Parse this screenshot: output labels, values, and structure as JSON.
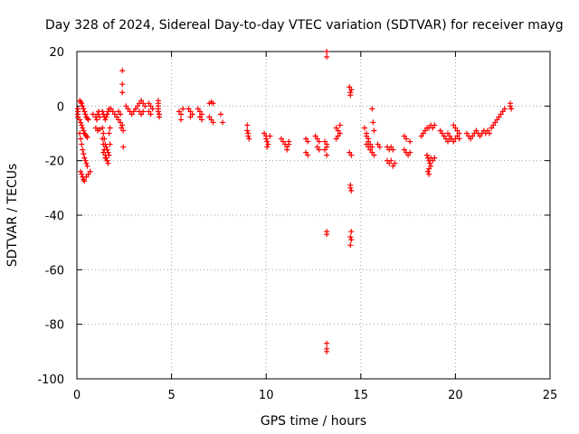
{
  "chart_data": {
    "type": "scatter",
    "title": "Day 328 of 2024, Sidereal Day-to-day VTEC variation (SDTVAR) for receiver mayg",
    "xlabel": "GPS time / hours",
    "ylabel": "SDTVAR / TECUs",
    "xlim": [
      0,
      25
    ],
    "ylim": [
      -100,
      20
    ],
    "xticks": [
      0,
      5,
      10,
      15,
      20,
      25
    ],
    "yticks": [
      -100,
      -80,
      -60,
      -40,
      -20,
      0,
      20
    ],
    "grid": true,
    "marker": "+",
    "colors": {
      "points": "#ff0000",
      "grid": "#a0a0a0",
      "axes": "#000000"
    },
    "series": [
      {
        "name": "SDTVAR",
        "points": [
          [
            0.05,
            -1
          ],
          [
            0.05,
            -2
          ],
          [
            0.05,
            -3
          ],
          [
            0.05,
            -4
          ],
          [
            0.15,
            2
          ],
          [
            0.2,
            1.5
          ],
          [
            0.25,
            1
          ],
          [
            0.3,
            0
          ],
          [
            0.35,
            -1
          ],
          [
            0.4,
            -2
          ],
          [
            0.45,
            -3
          ],
          [
            0.5,
            -4
          ],
          [
            0.55,
            -4.5
          ],
          [
            0.6,
            -5
          ],
          [
            0.15,
            -5
          ],
          [
            0.2,
            -6
          ],
          [
            0.25,
            -7
          ],
          [
            0.3,
            -8
          ],
          [
            0.35,
            -9
          ],
          [
            0.4,
            -10
          ],
          [
            0.45,
            -10.5
          ],
          [
            0.5,
            -11
          ],
          [
            0.55,
            -11.5
          ],
          [
            0.15,
            -10
          ],
          [
            0.2,
            -12
          ],
          [
            0.25,
            -14
          ],
          [
            0.3,
            -16
          ],
          [
            0.35,
            -17.5
          ],
          [
            0.4,
            -19
          ],
          [
            0.45,
            -20
          ],
          [
            0.5,
            -21
          ],
          [
            0.55,
            -22
          ],
          [
            0.2,
            -24
          ],
          [
            0.25,
            -25
          ],
          [
            0.3,
            -26
          ],
          [
            0.35,
            -27
          ],
          [
            0.4,
            -27.5
          ],
          [
            0.5,
            -26
          ],
          [
            0.6,
            -25
          ],
          [
            0.7,
            -24
          ],
          [
            0.85,
            -3
          ],
          [
            1.0,
            -4
          ],
          [
            1.05,
            -5
          ],
          [
            1.1,
            -3
          ],
          [
            1.15,
            -2
          ],
          [
            1.2,
            -4
          ],
          [
            1.0,
            -8
          ],
          [
            1.1,
            -9
          ],
          [
            1.2,
            -8.5
          ],
          [
            1.35,
            -2
          ],
          [
            1.4,
            -3
          ],
          [
            1.45,
            -4
          ],
          [
            1.5,
            -5
          ],
          [
            1.55,
            -4
          ],
          [
            1.6,
            -3
          ],
          [
            1.65,
            -2
          ],
          [
            1.7,
            -1
          ],
          [
            1.35,
            -8
          ],
          [
            1.4,
            -10
          ],
          [
            1.45,
            -12
          ],
          [
            1.5,
            -14
          ],
          [
            1.55,
            -15
          ],
          [
            1.6,
            -16
          ],
          [
            1.65,
            -17
          ],
          [
            1.35,
            -12
          ],
          [
            1.4,
            -14
          ],
          [
            1.45,
            -16
          ],
          [
            1.5,
            -18
          ],
          [
            1.55,
            -19
          ],
          [
            1.6,
            -20
          ],
          [
            1.65,
            -21
          ],
          [
            1.4,
            -17
          ],
          [
            1.5,
            -19
          ],
          [
            1.6,
            -20
          ],
          [
            1.7,
            -18
          ],
          [
            1.75,
            -14
          ],
          [
            1.7,
            -10
          ],
          [
            1.75,
            -8
          ],
          [
            1.8,
            -1
          ],
          [
            1.9,
            -2
          ],
          [
            2.0,
            -3
          ],
          [
            2.1,
            -4
          ],
          [
            2.2,
            -2
          ],
          [
            2.3,
            -3
          ],
          [
            2.2,
            -5
          ],
          [
            2.3,
            -6
          ],
          [
            2.4,
            -7
          ],
          [
            2.35,
            -8
          ],
          [
            2.4,
            13
          ],
          [
            2.4,
            8
          ],
          [
            2.4,
            5
          ],
          [
            2.45,
            -9
          ],
          [
            2.45,
            -15
          ],
          [
            2.6,
            0
          ],
          [
            2.7,
            -1
          ],
          [
            2.8,
            -2
          ],
          [
            2.9,
            -3
          ],
          [
            3.0,
            -2
          ],
          [
            3.1,
            -1
          ],
          [
            3.2,
            0
          ],
          [
            3.3,
            1
          ],
          [
            3.4,
            2
          ],
          [
            3.5,
            1
          ],
          [
            3.6,
            0
          ],
          [
            3.3,
            -2
          ],
          [
            3.4,
            -3
          ],
          [
            3.5,
            -2
          ],
          [
            3.8,
            1
          ],
          [
            3.9,
            0
          ],
          [
            4.0,
            -1
          ],
          [
            3.8,
            -2
          ],
          [
            3.9,
            -3
          ],
          [
            4.3,
            2
          ],
          [
            4.3,
            1
          ],
          [
            4.3,
            0
          ],
          [
            4.3,
            -1
          ],
          [
            4.3,
            -2
          ],
          [
            4.35,
            -3
          ],
          [
            4.35,
            -4
          ],
          [
            5.4,
            -2
          ],
          [
            5.5,
            -3
          ],
          [
            5.6,
            -1
          ],
          [
            5.5,
            -5
          ],
          [
            5.9,
            -1
          ],
          [
            6.0,
            -2
          ],
          [
            6.1,
            -3
          ],
          [
            6.0,
            -4
          ],
          [
            6.4,
            -1
          ],
          [
            6.5,
            -2
          ],
          [
            6.6,
            -3
          ],
          [
            6.5,
            -4
          ],
          [
            6.6,
            -5
          ],
          [
            7.0,
            1
          ],
          [
            7.1,
            1.5
          ],
          [
            7.2,
            1
          ],
          [
            7.0,
            -4
          ],
          [
            7.1,
            -5
          ],
          [
            7.2,
            -6
          ],
          [
            7.6,
            -3
          ],
          [
            7.7,
            -6
          ],
          [
            9.0,
            -7
          ],
          [
            9.0,
            -9
          ],
          [
            9.05,
            -10
          ],
          [
            9.05,
            -11
          ],
          [
            9.1,
            -12
          ],
          [
            9.9,
            -10
          ],
          [
            10.0,
            -11
          ],
          [
            10.0,
            -12
          ],
          [
            10.05,
            -13
          ],
          [
            10.1,
            -14
          ],
          [
            10.05,
            -15
          ],
          [
            10.2,
            -11
          ],
          [
            10.8,
            -12
          ],
          [
            10.9,
            -13
          ],
          [
            11.0,
            -14
          ],
          [
            11.1,
            -15
          ],
          [
            11.2,
            -14
          ],
          [
            11.1,
            -16
          ],
          [
            11.2,
            -13
          ],
          [
            12.1,
            -12
          ],
          [
            12.2,
            -13
          ],
          [
            12.1,
            -17
          ],
          [
            12.2,
            -18
          ],
          [
            12.6,
            -11
          ],
          [
            12.7,
            -12
          ],
          [
            12.8,
            -13
          ],
          [
            12.7,
            -15
          ],
          [
            12.8,
            -16
          ],
          [
            13.1,
            -13
          ],
          [
            13.2,
            -14
          ],
          [
            13.2,
            -15
          ],
          [
            13.1,
            -16
          ],
          [
            13.2,
            -18
          ],
          [
            13.2,
            20
          ],
          [
            13.2,
            18
          ],
          [
            13.2,
            -46
          ],
          [
            13.2,
            -47
          ],
          [
            13.2,
            -87
          ],
          [
            13.2,
            -89
          ],
          [
            13.2,
            -90
          ],
          [
            13.7,
            -8
          ],
          [
            13.8,
            -9
          ],
          [
            13.9,
            -10
          ],
          [
            13.8,
            -11
          ],
          [
            13.7,
            -12
          ],
          [
            13.9,
            -7
          ],
          [
            14.4,
            -17
          ],
          [
            14.5,
            -18
          ],
          [
            14.45,
            -30
          ],
          [
            14.5,
            -31
          ],
          [
            14.45,
            -29
          ],
          [
            14.4,
            7
          ],
          [
            14.45,
            5
          ],
          [
            14.5,
            6
          ],
          [
            14.45,
            4
          ],
          [
            14.5,
            -46
          ],
          [
            14.45,
            -48
          ],
          [
            14.5,
            -49
          ],
          [
            14.45,
            -51
          ],
          [
            15.2,
            -8
          ],
          [
            15.3,
            -10
          ],
          [
            15.4,
            -12
          ],
          [
            15.3,
            -14
          ],
          [
            15.4,
            -15
          ],
          [
            15.5,
            -16
          ],
          [
            15.6,
            -17
          ],
          [
            15.7,
            -18
          ],
          [
            15.3,
            -11
          ],
          [
            15.4,
            -13
          ],
          [
            15.5,
            -14
          ],
          [
            15.6,
            -15
          ],
          [
            15.6,
            -1
          ],
          [
            15.65,
            -6
          ],
          [
            15.7,
            -9
          ],
          [
            15.9,
            -14
          ],
          [
            16.0,
            -15
          ],
          [
            16.4,
            -15
          ],
          [
            16.5,
            -16
          ],
          [
            16.6,
            -15
          ],
          [
            16.7,
            -16
          ],
          [
            16.4,
            -20
          ],
          [
            16.5,
            -21
          ],
          [
            16.6,
            -20
          ],
          [
            16.7,
            -22
          ],
          [
            16.8,
            -21
          ],
          [
            17.3,
            -11
          ],
          [
            17.4,
            -12
          ],
          [
            17.3,
            -16
          ],
          [
            17.4,
            -17
          ],
          [
            17.5,
            -18
          ],
          [
            17.6,
            -17
          ],
          [
            17.6,
            -13
          ],
          [
            18.2,
            -11
          ],
          [
            18.3,
            -10
          ],
          [
            18.4,
            -9
          ],
          [
            18.5,
            -8
          ],
          [
            18.6,
            -8
          ],
          [
            18.7,
            -7
          ],
          [
            18.8,
            -8
          ],
          [
            18.9,
            -7
          ],
          [
            18.5,
            -18
          ],
          [
            18.55,
            -19
          ],
          [
            18.6,
            -20
          ],
          [
            18.65,
            -21
          ],
          [
            18.7,
            -22
          ],
          [
            18.6,
            -23
          ],
          [
            18.55,
            -24
          ],
          [
            18.6,
            -25
          ],
          [
            18.7,
            -19
          ],
          [
            18.8,
            -20
          ],
          [
            18.9,
            -19
          ],
          [
            19.2,
            -9
          ],
          [
            19.3,
            -10
          ],
          [
            19.4,
            -11
          ],
          [
            19.5,
            -12
          ],
          [
            19.6,
            -13
          ],
          [
            19.7,
            -12
          ],
          [
            19.6,
            -10
          ],
          [
            19.7,
            -11
          ],
          [
            19.8,
            -12
          ],
          [
            19.9,
            -13
          ],
          [
            20.0,
            -12
          ],
          [
            20.1,
            -11
          ],
          [
            20.2,
            -12
          ],
          [
            19.9,
            -7
          ],
          [
            20.0,
            -8
          ],
          [
            20.1,
            -9
          ],
          [
            20.2,
            -10
          ],
          [
            20.6,
            -10
          ],
          [
            20.7,
            -11
          ],
          [
            20.8,
            -12
          ],
          [
            20.9,
            -11
          ],
          [
            21.0,
            -10
          ],
          [
            21.1,
            -9
          ],
          [
            21.2,
            -10
          ],
          [
            21.3,
            -11
          ],
          [
            21.4,
            -10
          ],
          [
            21.5,
            -9
          ],
          [
            21.6,
            -10
          ],
          [
            21.7,
            -9
          ],
          [
            21.9,
            -8
          ],
          [
            22.0,
            -7
          ],
          [
            22.1,
            -6
          ],
          [
            22.2,
            -5
          ],
          [
            22.3,
            -4
          ],
          [
            22.4,
            -3
          ],
          [
            22.5,
            -2
          ],
          [
            22.6,
            -1
          ],
          [
            21.8,
            -10
          ],
          [
            22.9,
            1
          ],
          [
            22.9,
            0
          ],
          [
            22.95,
            -1
          ]
        ]
      }
    ]
  }
}
